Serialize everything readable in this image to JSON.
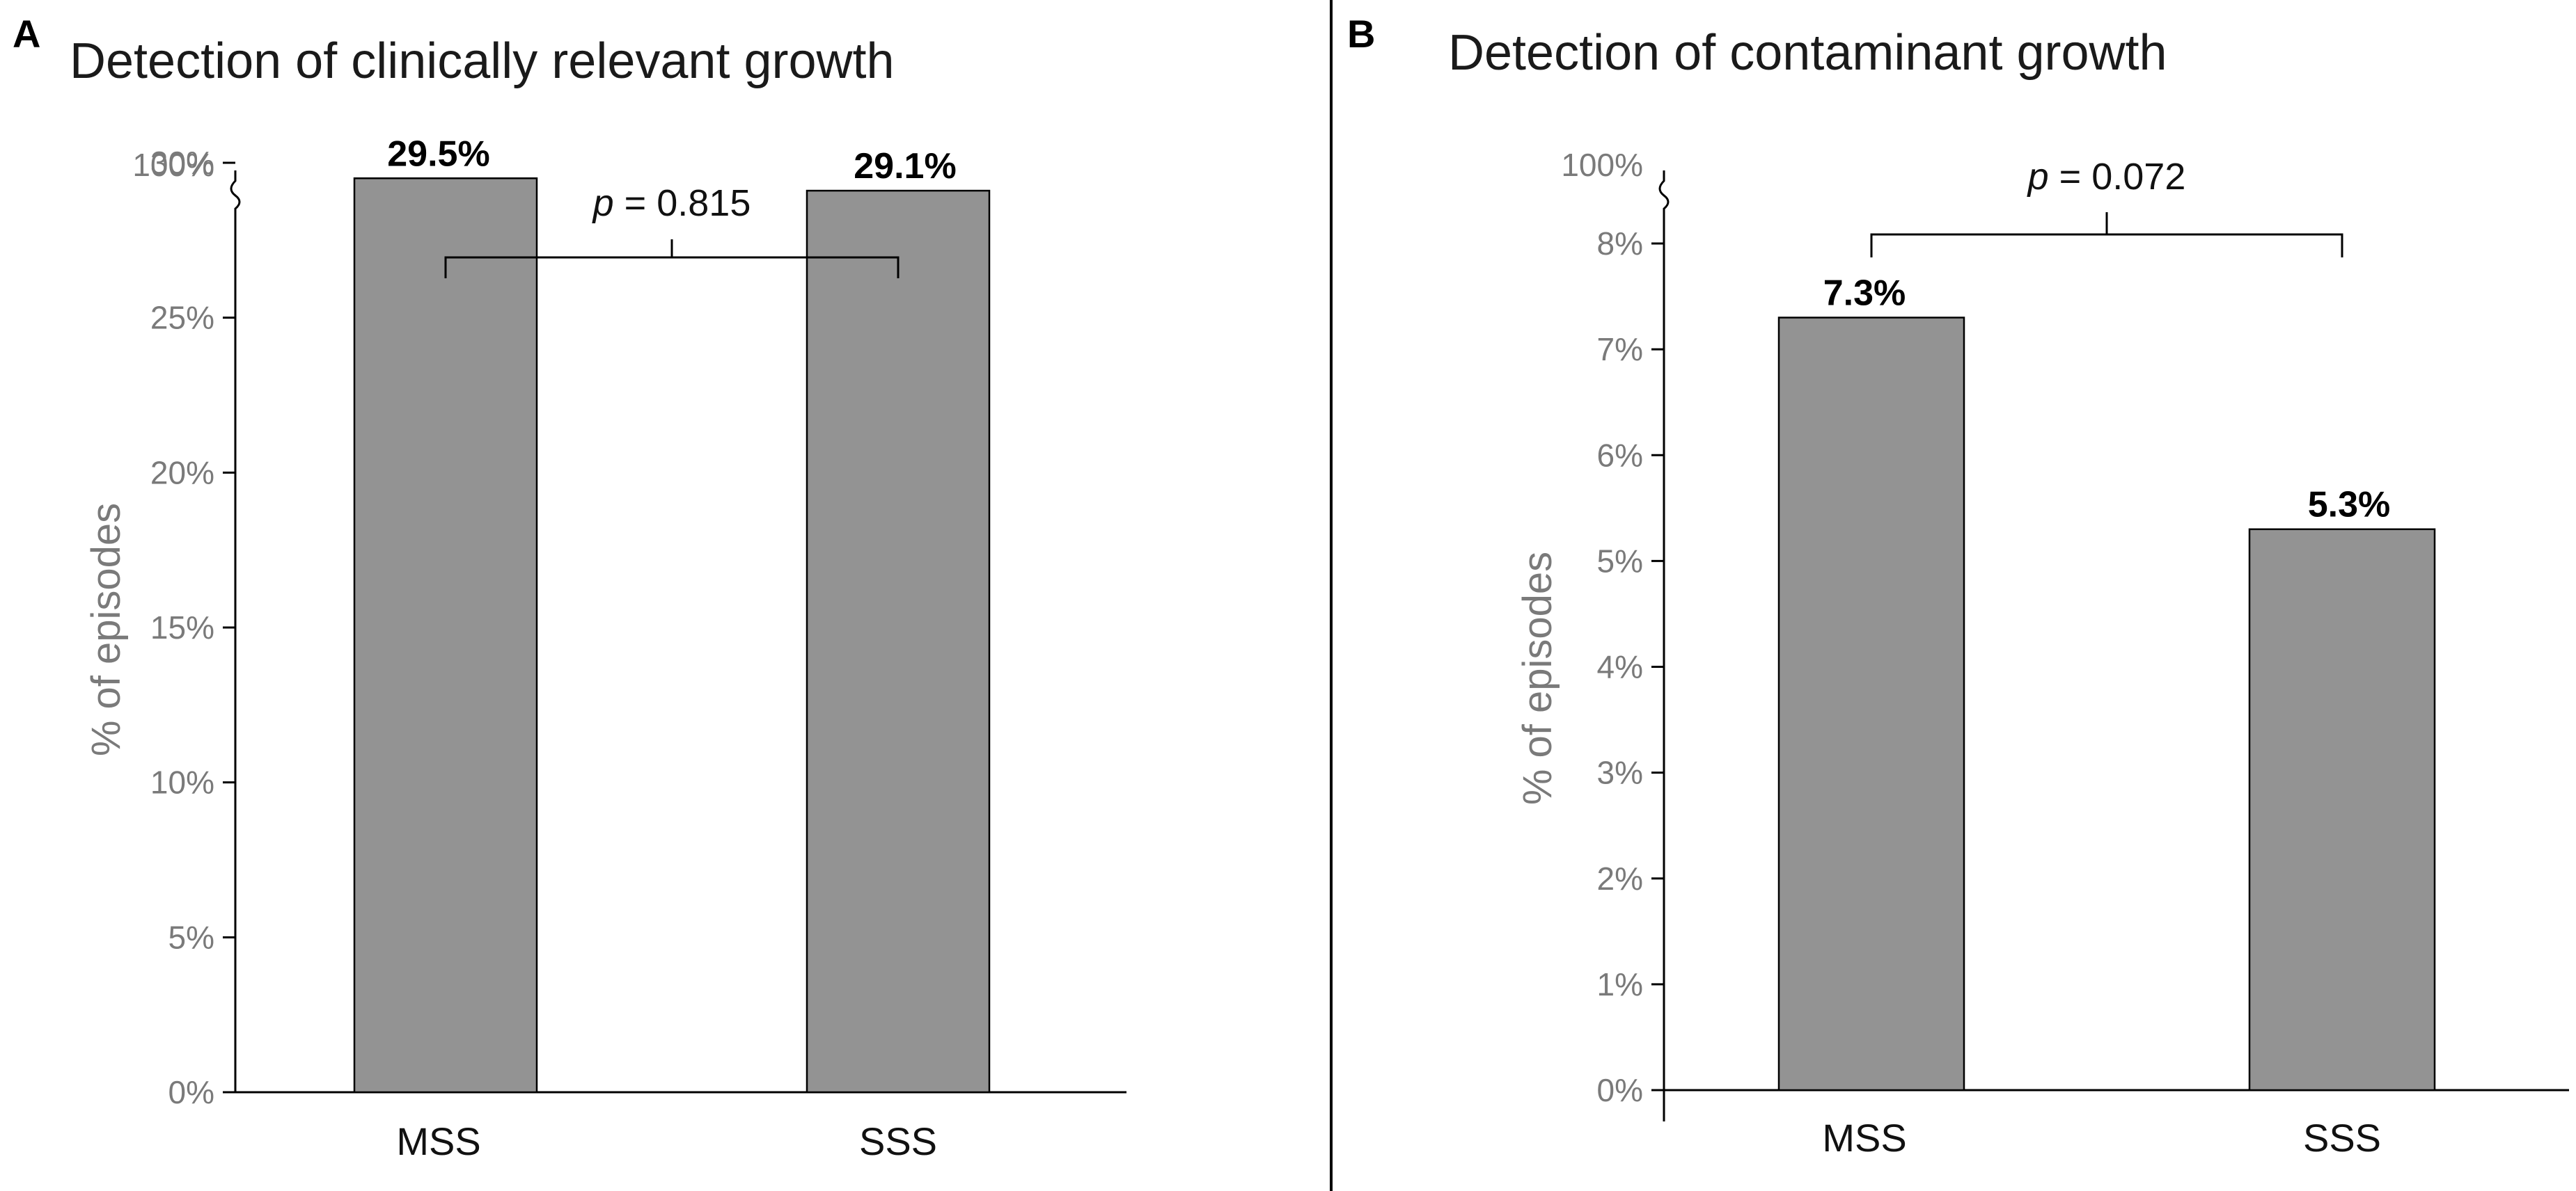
{
  "chart_data": [
    {
      "type": "bar",
      "panel": "A",
      "title": "Detection of clinically relevant growth",
      "ylabel": "% of episodes",
      "categories": [
        "MSS",
        "SSS"
      ],
      "values": [
        29.5,
        29.1
      ],
      "value_labels": [
        "29.5%",
        "29.1%"
      ],
      "ylim": [
        0,
        100
      ],
      "axis_break": true,
      "yticks": [
        0,
        5,
        10,
        15,
        20,
        25,
        30,
        100
      ],
      "ytick_labels": [
        "0%",
        "5%",
        "10%",
        "15%",
        "20%",
        "25%",
        "30%",
        "100%"
      ],
      "comparison": {
        "p_symbol": "p",
        "p_text": " = 0.815"
      },
      "bar_color": "#939393"
    },
    {
      "type": "bar",
      "panel": "B",
      "title": "Detection of contaminant growth",
      "ylabel": "% of episodes",
      "categories": [
        "MSS",
        "SSS"
      ],
      "values": [
        7.3,
        5.3
      ],
      "value_labels": [
        "7.3%",
        "5.3%"
      ],
      "ylim": [
        0,
        100
      ],
      "axis_break": true,
      "yticks": [
        0,
        1,
        2,
        3,
        4,
        5,
        6,
        7,
        8,
        100
      ],
      "ytick_labels": [
        "0%",
        "1%",
        "2%",
        "3%",
        "4%",
        "5%",
        "6%",
        "7%",
        "8%",
        "100%"
      ],
      "comparison": {
        "p_symbol": "p",
        "p_text": " = 0.072"
      },
      "bar_color": "#939393"
    }
  ]
}
